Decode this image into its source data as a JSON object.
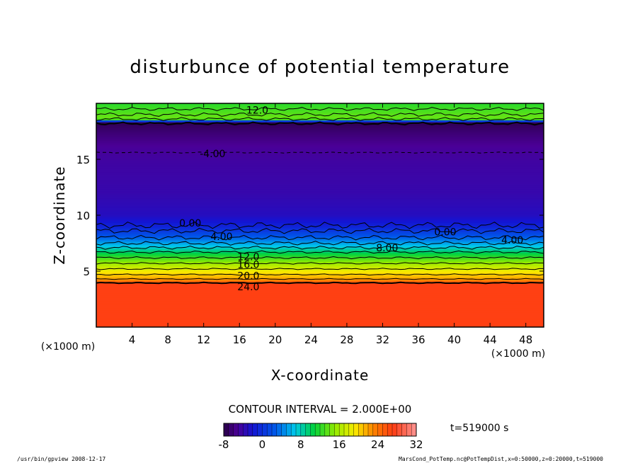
{
  "chart_data": {
    "type": "heatmap",
    "title": "disturbunce of potential temperature",
    "xlabel": "X-coordinate",
    "ylabel": "Z-coordinate",
    "x_unit_left": "(×1000 m)",
    "x_unit_right": "(×1000 m)",
    "xlim": [
      0,
      50
    ],
    "ylim": [
      0,
      20
    ],
    "x_ticks": [
      "4",
      "8",
      "12",
      "16",
      "20",
      "24",
      "28",
      "32",
      "36",
      "40",
      "44",
      "48"
    ],
    "y_ticks": [
      "5",
      "10",
      "15"
    ],
    "contour_interval_text": "CONTOUR INTERVAL = 2.000E+00",
    "time_text": "t=519000 s",
    "colorbar": {
      "min": -8,
      "max": 32,
      "ticks": [
        "-8",
        "0",
        "8",
        "16",
        "24",
        "32"
      ]
    },
    "contour_labels": [
      {
        "text": "12.0",
        "x": 18,
        "z": 19.4
      },
      {
        "text": "-4.00",
        "x": 13,
        "z": 15.5
      },
      {
        "text": "0.00",
        "x": 10.5,
        "z": 9.3
      },
      {
        "text": "4.00",
        "x": 14,
        "z": 8.1
      },
      {
        "text": "0.00",
        "x": 39,
        "z": 8.5
      },
      {
        "text": "4.00",
        "x": 46.5,
        "z": 7.8
      },
      {
        "text": "8.00",
        "x": 32.5,
        "z": 7.1
      },
      {
        "text": "12.0",
        "x": 17,
        "z": 6.3
      },
      {
        "text": "16.0",
        "x": 17,
        "z": 5.6
      },
      {
        "text": "20.0",
        "x": 17,
        "z": 4.6
      },
      {
        "text": "24.0",
        "x": 17,
        "z": 3.6
      }
    ],
    "vertical_profile": [
      {
        "z": 0,
        "value": 27
      },
      {
        "z": 3.9,
        "value": 27
      },
      {
        "z": 4.3,
        "value": 22
      },
      {
        "z": 5.0,
        "value": 19
      },
      {
        "z": 5.8,
        "value": 15
      },
      {
        "z": 6.5,
        "value": 11
      },
      {
        "z": 7.2,
        "value": 7
      },
      {
        "z": 8.0,
        "value": 3
      },
      {
        "z": 9.0,
        "value": -1
      },
      {
        "z": 10.0,
        "value": -3
      },
      {
        "z": 12.0,
        "value": -4
      },
      {
        "z": 14.5,
        "value": -4.5
      },
      {
        "z": 16.0,
        "value": -5
      },
      {
        "z": 17.5,
        "value": -6.5
      },
      {
        "z": 18.3,
        "value": -7.5
      },
      {
        "z": 18.6,
        "value": 14
      },
      {
        "z": 20.0,
        "value": 12
      }
    ]
  },
  "footer": {
    "left": "/usr/bin/gpview   2008-12-17",
    "right": "MarsCond_PotTemp.nc@PotTempDist,x=0:50000,z=0:20000,t=519000"
  }
}
